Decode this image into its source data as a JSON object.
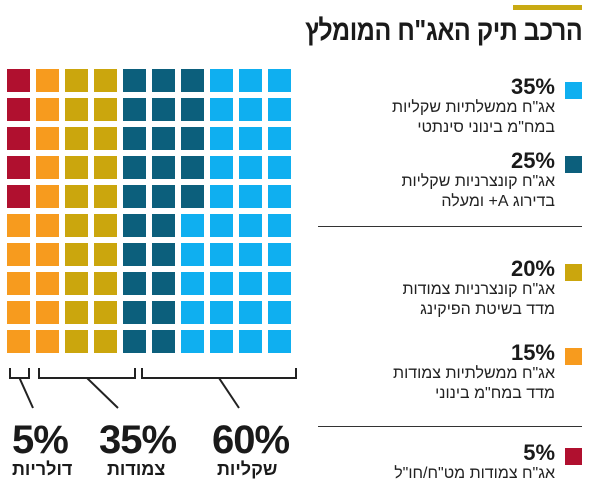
{
  "title": "הרכב תיק האג\"ח המומלץ",
  "colors": {
    "accent_bar": "#c9aa13",
    "light_blue": "#0faff0",
    "dark_teal": "#0c5f7c",
    "mustard": "#cba60d",
    "orange": "#f79b1e",
    "crimson": "#b0102f"
  },
  "chart_data": {
    "type": "waffle",
    "title": "הרכב תיק האג\"ח המומלץ",
    "grid": {
      "columns": 10,
      "rows": 10,
      "total_cells": 100
    },
    "series": [
      {
        "name": "אג\"ח ממשלתיות שקליות במח\"מ בינוני סינתטי",
        "percent": "35%",
        "value": 35,
        "color": "#0faff0"
      },
      {
        "name": "אג\"ח קונצרניות שקליות בדירוג A+ ומעלה",
        "percent": "25%",
        "value": 25,
        "color": "#0c5f7c"
      },
      {
        "name": "אג\"ח קונצרניות צמודות מדד בשיטת הפיקינג",
        "percent": "20%",
        "value": 20,
        "color": "#cba60d"
      },
      {
        "name": "אג\"ח ממשלתיות צמודות מדד במח\"מ בינוני",
        "percent": "15%",
        "value": 15,
        "color": "#f79b1e"
      },
      {
        "name": "אג\"ח צמודות מט\"ח/חו\"ל",
        "percent": "5%",
        "value": 5,
        "color": "#b0102f"
      }
    ],
    "groups": [
      {
        "name": "שקליות",
        "percent": "60%",
        "value": 60
      },
      {
        "name": "צמודות",
        "percent": "35%",
        "value": 35
      },
      {
        "name": "דולריות",
        "percent": "5%",
        "value": 5
      }
    ]
  },
  "legend": {
    "items": [
      {
        "percent": "35%",
        "line1": "אג\"ח ממשלתיות שקליות",
        "line2": "במח\"מ בינוני סינתטי",
        "color": "#0faff0"
      },
      {
        "percent": "25%",
        "line1": "אג\"ח קונצרניות שקליות",
        "line2": "בדירוג A+ ומעלה",
        "color": "#0c5f7c"
      },
      {
        "percent": "20%",
        "line1": "אג\"ח קונצרניות צמודות",
        "line2": "מדד בשיטת הפיקינג",
        "color": "#cba60d"
      },
      {
        "percent": "15%",
        "line1": "אג\"ח ממשלתיות צמודות",
        "line2": "מדד במח\"מ בינוני",
        "color": "#f79b1e"
      },
      {
        "percent": "5%",
        "line1": "אג\"ח צמודות מט\"ח/חו\"ל",
        "line2": "",
        "color": "#b0102f"
      }
    ]
  },
  "groups": [
    {
      "percent": "5%",
      "label": "דולריות"
    },
    {
      "percent": "35%",
      "label": "צמודות"
    },
    {
      "percent": "60%",
      "label": "שקליות"
    }
  ]
}
